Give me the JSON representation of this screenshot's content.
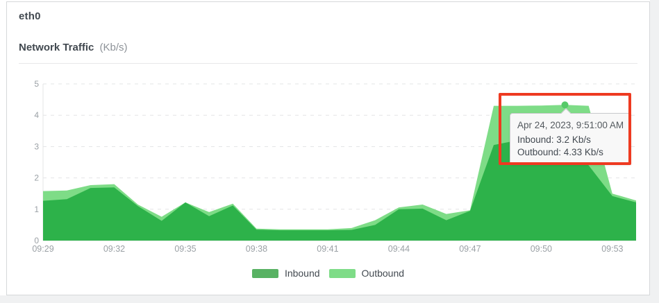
{
  "card": {
    "title": "eth0",
    "chart_title": "Network Traffic",
    "chart_unit": "(Kb/s)"
  },
  "tooltip": {
    "date": "Apr 24, 2023, 9:51:00 AM",
    "inbound_line": "Inbound: 3.2 Kb/s",
    "outbound_line": "Outbound: 4.33 Kb/s"
  },
  "legend": [
    {
      "label": "Inbound",
      "color": "#58b263"
    },
    {
      "label": "Outbound",
      "color": "#7edc87"
    }
  ],
  "colors": {
    "inbound_area": "#2db24a",
    "outbound_area": "#7edc87",
    "grid": "#e3e4e6",
    "axis_text": "#9aa0a5",
    "highlight_dot": "#55ca68",
    "annotation_red": "#ee3a21",
    "tooltip_bg": "#f8f8f8",
    "tooltip_border": "#c9cbcd"
  },
  "chart_data": {
    "type": "area",
    "title": "Network Traffic (Kb/s)",
    "xlabel": "",
    "ylabel": "",
    "ylim": [
      0,
      5
    ],
    "yticks": [
      0,
      1,
      2,
      3,
      4,
      5
    ],
    "grid": "horizontal-dashed",
    "legend_position": "bottom",
    "x": [
      "09:29",
      "09:30",
      "09:31",
      "09:32",
      "09:33",
      "09:34",
      "09:35",
      "09:36",
      "09:37",
      "09:38",
      "09:39",
      "09:40",
      "09:41",
      "09:42",
      "09:43",
      "09:44",
      "09:45",
      "09:46",
      "09:47",
      "09:48",
      "09:49",
      "09:50",
      "09:51",
      "09:52",
      "09:53",
      "09:54"
    ],
    "xticks": [
      "09:29",
      "09:32",
      "09:35",
      "09:38",
      "09:41",
      "09:44",
      "09:47",
      "09:50",
      "09:53"
    ],
    "series": [
      {
        "name": "Inbound",
        "color": "#2db24a",
        "values": [
          1.27,
          1.32,
          1.68,
          1.7,
          1.1,
          0.63,
          1.22,
          0.78,
          1.12,
          0.35,
          0.33,
          0.33,
          0.33,
          0.34,
          0.5,
          1.0,
          1.02,
          0.65,
          0.95,
          3.05,
          3.2,
          3.2,
          3.2,
          2.4,
          1.42,
          1.22
        ]
      },
      {
        "name": "Outbound",
        "color": "#7edc87",
        "values": [
          1.58,
          1.6,
          1.77,
          1.8,
          1.15,
          0.76,
          1.22,
          0.91,
          1.18,
          0.38,
          0.36,
          0.36,
          0.36,
          0.4,
          0.65,
          1.06,
          1.15,
          0.85,
          0.97,
          4.3,
          4.3,
          4.31,
          4.33,
          4.3,
          1.5,
          1.28
        ]
      }
    ],
    "highlight": {
      "x": "09:51",
      "series_values": {
        "Inbound": 3.2,
        "Outbound": 4.33
      },
      "datetime": "Apr 24, 2023, 9:51:00 AM"
    }
  }
}
